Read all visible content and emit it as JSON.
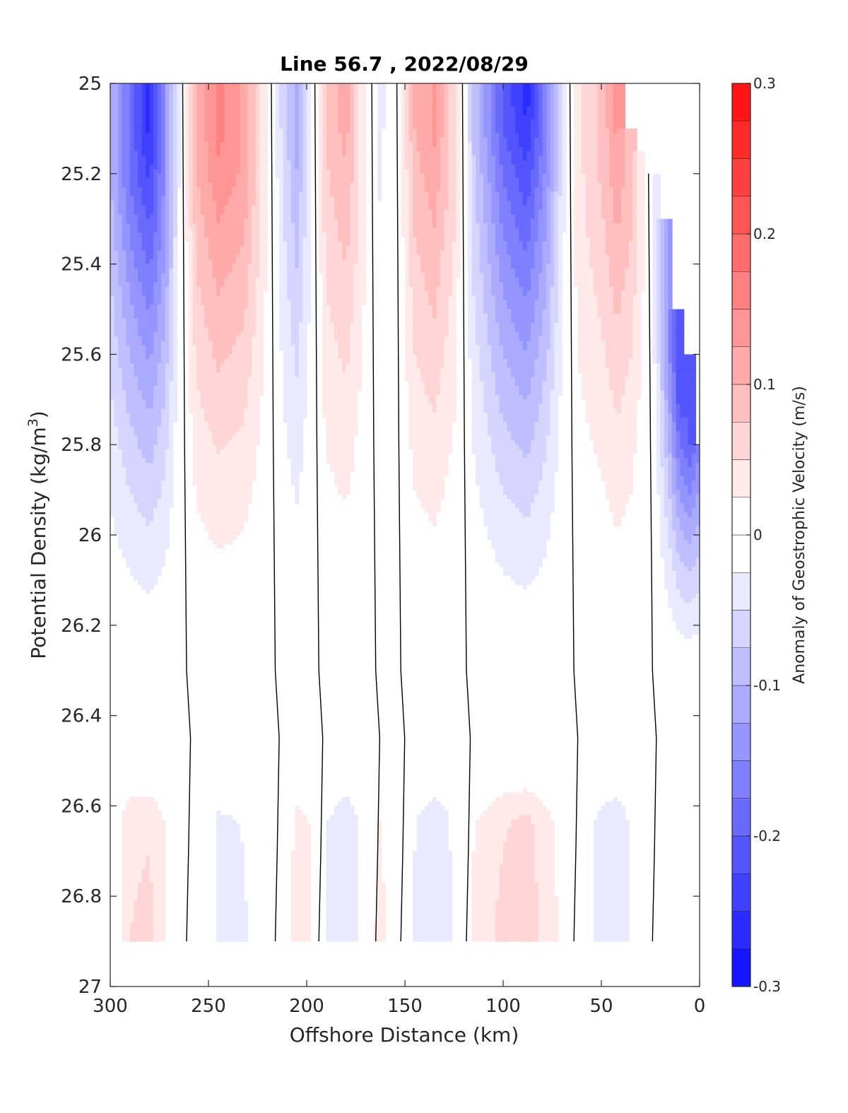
{
  "chart_data": {
    "type": "heatmap",
    "subtype": "filled-contour",
    "title": "Line 56.7 , 2022/08/29",
    "xlabel": "Offshore Distance (km)",
    "ylabel_main": "Potential Density (kg/m",
    "ylabel_sup": "3",
    "ylabel_end": ")",
    "colorbar_label": "Anomaly of Geostrophic Velocity (m/s)",
    "xlim": [
      300,
      0
    ],
    "x_reversed": true,
    "ylim": [
      25,
      27
    ],
    "y_reversed": true,
    "x_ticks": [
      300,
      250,
      200,
      150,
      100,
      50,
      0
    ],
    "x_tick_labels": [
      "300",
      "250",
      "200",
      "150",
      "100",
      "50",
      "0"
    ],
    "y_ticks": [
      25,
      25.2,
      25.4,
      25.6,
      25.8,
      26,
      26.2,
      26.4,
      26.6,
      26.8,
      27
    ],
    "y_tick_labels": [
      "25",
      "25.2",
      "25.4",
      "25.6",
      "25.8",
      "26",
      "26.2",
      "26.4",
      "26.6",
      "26.8",
      "27"
    ],
    "colorbar": {
      "min": -0.3,
      "max": 0.3,
      "step": 0.025,
      "ticks": [
        -0.3,
        -0.2,
        -0.1,
        0,
        0.1,
        0.2,
        0.3
      ],
      "tick_labels": [
        "-0.3",
        "-0.2",
        "-0.1",
        "0",
        "0.1",
        "0.2",
        "0.3"
      ],
      "negative_color": "#0000ff",
      "positive_color": "#ff0000",
      "zero_color": "#ffffff"
    },
    "grid": false,
    "data_ymax": 26.9,
    "columns": [
      {
        "x": 300,
        "ytop": 25.0,
        "peak": -0.1,
        "peak_y": 25.2,
        "low": [
          0,
          0
        ]
      },
      {
        "x": 290,
        "ytop": 25.0,
        "peak": -0.18,
        "peak_y": 25.2,
        "low": [
          0.04,
          0.05
        ]
      },
      {
        "x": 280,
        "ytop": 25.0,
        "peak": -0.26,
        "peak_y": 25.1,
        "low": [
          0.04,
          0.06
        ]
      },
      {
        "x": 272,
        "ytop": 25.0,
        "peak": -0.14,
        "peak_y": 25.3,
        "low": [
          0.02,
          0.03
        ]
      },
      {
        "x": 266,
        "ytop": 25.0,
        "peak": -0.04,
        "peak_y": 25.2,
        "low": [
          0,
          0
        ]
      },
      {
        "x": 256,
        "ytop": 25.0,
        "peak": 0.1,
        "peak_y": 25.2,
        "low": [
          0,
          0
        ]
      },
      {
        "x": 245,
        "ytop": 25.0,
        "peak": 0.16,
        "peak_y": 25.1,
        "low": [
          -0.03,
          -0.03
        ]
      },
      {
        "x": 232,
        "ytop": 25.0,
        "peak": 0.12,
        "peak_y": 25.2,
        "low": [
          -0.02,
          -0.03
        ]
      },
      {
        "x": 222,
        "ytop": 25.0,
        "peak": 0.04,
        "peak_y": 25.3,
        "low": [
          0,
          0
        ]
      },
      {
        "x": 212,
        "ytop": 25.0,
        "peak": -0.06,
        "peak_y": 25.1,
        "low": [
          0,
          0
        ]
      },
      {
        "x": 205,
        "ytop": 25.0,
        "peak": -0.11,
        "peak_y": 25.1,
        "low": [
          0.03,
          0.04
        ]
      },
      {
        "x": 198,
        "ytop": 25.0,
        "peak": -0.03,
        "peak_y": 25.2,
        "low": [
          0.02,
          0.03
        ]
      },
      {
        "x": 190,
        "ytop": 25.0,
        "peak": 0.08,
        "peak_y": 25.1,
        "low": [
          -0.02,
          -0.03
        ]
      },
      {
        "x": 180,
        "ytop": 25.0,
        "peak": 0.11,
        "peak_y": 25.1,
        "low": [
          -0.04,
          -0.05
        ]
      },
      {
        "x": 172,
        "ytop": 25.0,
        "peak": 0.04,
        "peak_y": 25.3,
        "low": [
          -0.02,
          -0.02
        ]
      },
      {
        "x": 163,
        "ytop": 25.0,
        "peak": -0.03,
        "peak_y": 25.1,
        "low": [
          0.02,
          0.04
        ]
      },
      {
        "x": 155,
        "ytop": 25.0,
        "peak": -0.01,
        "peak_y": 25.2,
        "low": [
          0,
          0
        ]
      },
      {
        "x": 145,
        "ytop": 25.0,
        "peak": 0.1,
        "peak_y": 25.1,
        "low": [
          -0.02,
          -0.03
        ]
      },
      {
        "x": 135,
        "ytop": 25.0,
        "peak": 0.13,
        "peak_y": 25.1,
        "low": [
          -0.04,
          -0.05
        ]
      },
      {
        "x": 125,
        "ytop": 25.0,
        "peak": 0.06,
        "peak_y": 25.2,
        "low": [
          -0.02,
          -0.02
        ]
      },
      {
        "x": 115,
        "ytop": 25.0,
        "peak": -0.08,
        "peak_y": 25.1,
        "low": [
          0.02,
          0.03
        ]
      },
      {
        "x": 100,
        "ytop": 25.0,
        "peak": -0.2,
        "peak_y": 25.1,
        "low": [
          0.04,
          0.06
        ]
      },
      {
        "x": 88,
        "ytop": 25.0,
        "peak": -0.26,
        "peak_y": 25.05,
        "low": [
          0.05,
          0.07
        ]
      },
      {
        "x": 78,
        "ytop": 25.0,
        "peak": -0.16,
        "peak_y": 25.1,
        "low": [
          0.03,
          0.04
        ]
      },
      {
        "x": 70,
        "ytop": 25.0,
        "peak": -0.04,
        "peak_y": 25.2,
        "low": [
          0.01,
          0.02
        ]
      },
      {
        "x": 62,
        "ytop": 25.0,
        "peak": 0.04,
        "peak_y": 25.3,
        "low": [
          0,
          0
        ]
      },
      {
        "x": 50,
        "ytop": 25.0,
        "peak": 0.08,
        "peak_y": 25.2,
        "low": [
          -0.03,
          -0.04
        ]
      },
      {
        "x": 42,
        "ytop": 25.0,
        "peak": 0.14,
        "peak_y": 25.05,
        "low": [
          -0.04,
          -0.05
        ]
      },
      {
        "x": 35,
        "ytop": 25.1,
        "peak": 0.08,
        "peak_y": 25.3,
        "low": [
          -0.02,
          -0.02
        ]
      },
      {
        "x": 28,
        "ytop": 25.15,
        "peak": 0.02,
        "peak_y": 25.4,
        "low": [
          0,
          0
        ]
      },
      {
        "x": 22,
        "ytop": 25.2,
        "peak": -0.04,
        "peak_y": 25.5,
        "low": [
          0,
          0
        ]
      },
      {
        "x": 16,
        "ytop": 25.3,
        "peak": -0.14,
        "peak_y": 25.6,
        "low": [
          0,
          0
        ]
      },
      {
        "x": 10,
        "ytop": 25.5,
        "peak": -0.22,
        "peak_y": 25.7,
        "low": [
          0,
          0
        ]
      },
      {
        "x": 5,
        "ytop": 25.6,
        "peak": -0.2,
        "peak_y": 25.8,
        "low": [
          0,
          0
        ]
      },
      {
        "x": 0,
        "ytop": 25.8,
        "peak": -0.16,
        "peak_y": 25.8,
        "low": [
          0,
          0
        ]
      }
    ]
  }
}
